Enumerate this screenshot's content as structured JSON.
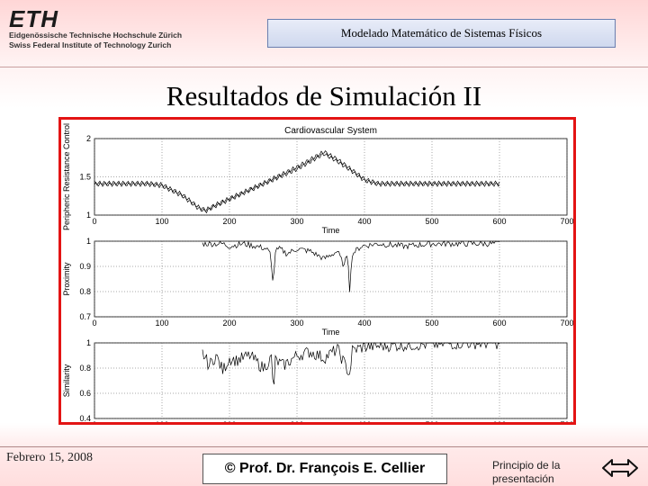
{
  "logo": {
    "mark": "ETH",
    "line1": "Eidgenössische Technische Hochschule Zürich",
    "line2": "Swiss Federal Institute of Technology Zurich"
  },
  "header": {
    "course_title": "Modelado Matemático de Sistemas Físicos"
  },
  "slide": {
    "title": "Resultados de Simulación II"
  },
  "footer": {
    "date": "Febrero 15, 2008",
    "copyright": "© Prof. Dr. François E. Cellier",
    "start_link_line1": "Principio de la",
    "start_link_line2": "presentación"
  },
  "colors": {
    "frame": "#e31414",
    "header_border": "#6a7fb0"
  },
  "icons": {
    "navigation": "double-arrow-icon"
  },
  "chart_data": [
    {
      "type": "line",
      "title": "Cardiovascular System",
      "xlabel": "Time",
      "ylabel": "Peripheric Resistance Control",
      "xlim": [
        0,
        700
      ],
      "ylim": [
        1,
        2
      ],
      "xticks": [
        0,
        100,
        200,
        300,
        400,
        500,
        600,
        700
      ],
      "yticks": [
        1,
        1.5,
        2
      ],
      "grid": true,
      "series": [
        {
          "points": [
            [
              0,
              1.4
            ],
            [
              80,
              1.4
            ],
            [
              100,
              1.38
            ],
            [
              130,
              1.25
            ],
            [
              155,
              1.08
            ],
            [
              165,
              1.05
            ],
            [
              180,
              1.12
            ],
            [
              220,
              1.28
            ],
            [
              260,
              1.44
            ],
            [
              300,
              1.6
            ],
            [
              330,
              1.75
            ],
            [
              340,
              1.8
            ],
            [
              360,
              1.7
            ],
            [
              385,
              1.55
            ],
            [
              400,
              1.45
            ],
            [
              420,
              1.4
            ],
            [
              600,
              1.4
            ]
          ]
        },
        {
          "points": [
            [
              0,
              1.42
            ],
            [
              80,
              1.42
            ],
            [
              100,
              1.4
            ],
            [
              130,
              1.27
            ],
            [
              155,
              1.1
            ],
            [
              165,
              1.07
            ],
            [
              180,
              1.14
            ],
            [
              220,
              1.3
            ],
            [
              260,
              1.46
            ],
            [
              300,
              1.63
            ],
            [
              330,
              1.78
            ],
            [
              340,
              1.83
            ],
            [
              360,
              1.73
            ],
            [
              385,
              1.57
            ],
            [
              400,
              1.47
            ],
            [
              420,
              1.42
            ],
            [
              600,
              1.42
            ]
          ]
        }
      ]
    },
    {
      "type": "line",
      "xlabel": "Time",
      "ylabel": "Proximity",
      "xlim": [
        0,
        700
      ],
      "ylim": [
        0.7,
        1
      ],
      "xticks": [
        0,
        100,
        200,
        300,
        400,
        500,
        600,
        700
      ],
      "yticks": [
        0.7,
        0.8,
        0.9,
        1
      ],
      "grid": true,
      "series": [
        {
          "points": [
            [
              160,
              0.99
            ],
            [
              190,
              0.99
            ],
            [
              200,
              0.98
            ],
            [
              220,
              0.99
            ],
            [
              240,
              0.98
            ],
            [
              255,
              0.97
            ],
            [
              260,
              0.95
            ],
            [
              265,
              0.83
            ],
            [
              268,
              0.96
            ],
            [
              275,
              0.97
            ],
            [
              285,
              0.95
            ],
            [
              300,
              0.97
            ],
            [
              320,
              0.96
            ],
            [
              340,
              0.93
            ],
            [
              360,
              0.96
            ],
            [
              370,
              0.9
            ],
            [
              375,
              0.96
            ],
            [
              378,
              0.81
            ],
            [
              382,
              0.95
            ],
            [
              395,
              0.98
            ],
            [
              420,
              0.99
            ],
            [
              460,
              0.98
            ],
            [
              500,
              0.99
            ],
            [
              540,
              0.99
            ],
            [
              600,
              0.99
            ]
          ]
        }
      ]
    },
    {
      "type": "line",
      "xlabel": "Time",
      "ylabel": "Similarity",
      "xlim": [
        0,
        700
      ],
      "ylim": [
        0.4,
        1
      ],
      "xticks": [
        0,
        100,
        200,
        300,
        400,
        500,
        600,
        700
      ],
      "yticks": [
        0.4,
        0.6,
        0.8,
        1
      ],
      "grid": true,
      "series": [
        {
          "points": [
            [
              160,
              0.92
            ],
            [
              170,
              0.82
            ],
            [
              180,
              0.9
            ],
            [
              190,
              0.78
            ],
            [
              200,
              0.88
            ],
            [
              210,
              0.86
            ],
            [
              230,
              0.9
            ],
            [
              250,
              0.8
            ],
            [
              262,
              0.88
            ],
            [
              265,
              0.6
            ],
            [
              268,
              0.86
            ],
            [
              280,
              0.82
            ],
            [
              300,
              0.9
            ],
            [
              320,
              0.93
            ],
            [
              340,
              0.88
            ],
            [
              360,
              0.95
            ],
            [
              378,
              0.75
            ],
            [
              382,
              0.94
            ],
            [
              400,
              0.97
            ],
            [
              440,
              0.98
            ],
            [
              500,
              0.99
            ],
            [
              560,
              1.0
            ],
            [
              600,
              1.0
            ]
          ]
        }
      ]
    }
  ]
}
